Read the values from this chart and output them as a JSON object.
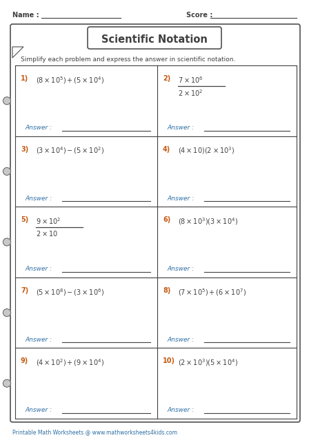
{
  "title": "Scientific Notation",
  "name_label": "Name :",
  "score_label": "Score :",
  "instruction": "Simplify each problem and express the answer in scientific notation.",
  "answer_label": "Answer :",
  "footer": "Printable Math Worksheets @ www.mathworksheets4kids.com",
  "bg_color": "#ffffff",
  "border_color": "#505050",
  "text_color_dark": "#404040",
  "text_color_blue": "#2e6fa3",
  "text_color_orange": "#c55a11",
  "problems": [
    {
      "num": "1)",
      "latex": "(8 \\times 10^{5}) + (5 \\times 10^{4})",
      "type": "inline"
    },
    {
      "num": "2)",
      "latex_num": "7 \\times 10^{6}",
      "latex_den": "2 \\times 10^{2}",
      "type": "fraction"
    },
    {
      "num": "3)",
      "latex": "(3 \\times 10^{4}) - (5 \\times 10^{2})",
      "type": "inline"
    },
    {
      "num": "4)",
      "latex": "(4 \\times 10) (2 \\times 10^{3})",
      "type": "inline"
    },
    {
      "num": "5)",
      "latex_num": "9 \\times 10^{2}",
      "latex_den": "2 \\times 10",
      "type": "fraction"
    },
    {
      "num": "6)",
      "latex": "(8 \\times 10^{3}) (3 \\times 10^{4})",
      "type": "inline"
    },
    {
      "num": "7)",
      "latex": "(5 \\times 10^{8}) - (3 \\times 10^{6})",
      "type": "inline"
    },
    {
      "num": "8)",
      "latex": "(7 \\times 10^{5}) + (6 \\times 10^{7})",
      "type": "inline"
    },
    {
      "num": "9)",
      "latex": "(4 \\times 10^{2}) + (9 \\times 10^{4})",
      "type": "inline"
    },
    {
      "num": "10)",
      "latex": "(2 \\times 10^{3}) (5 \\times 10^{4})",
      "type": "inline"
    }
  ]
}
